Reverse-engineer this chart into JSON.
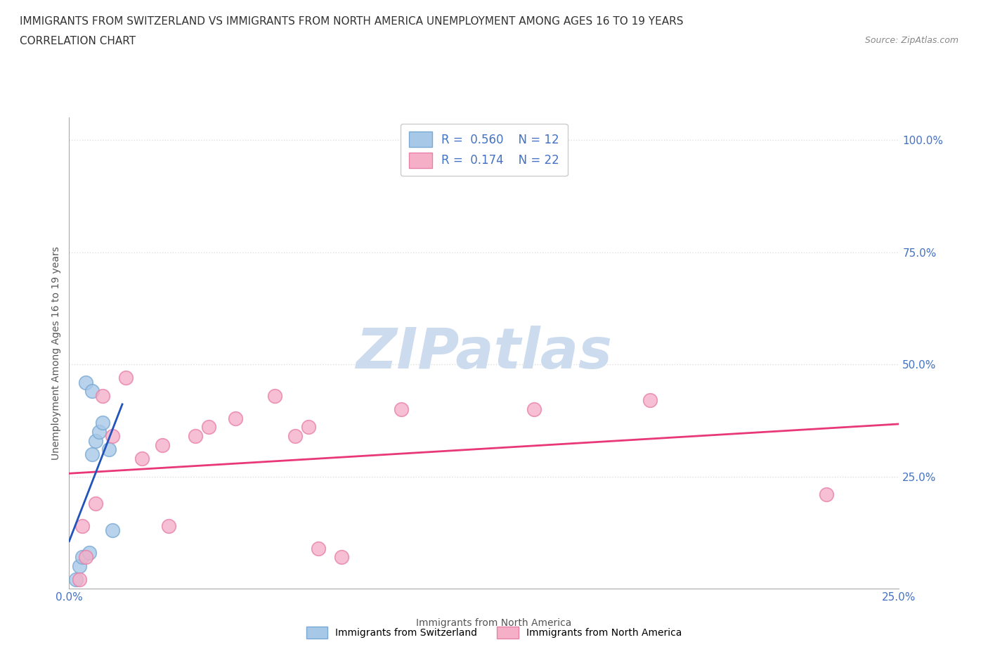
{
  "title_line1": "IMMIGRANTS FROM SWITZERLAND VS IMMIGRANTS FROM NORTH AMERICA UNEMPLOYMENT AMONG AGES 16 TO 19 YEARS",
  "title_line2": "CORRELATION CHART",
  "source_text": "Source: ZipAtlas.com",
  "xlabel": "Immigrants from North America",
  "ylabel": "Unemployment Among Ages 16 to 19 years",
  "xlim": [
    0.0,
    0.25
  ],
  "ylim": [
    0.0,
    1.05
  ],
  "xticks": [
    0.0,
    0.05,
    0.1,
    0.15,
    0.2,
    0.25
  ],
  "yticks": [
    0.0,
    0.25,
    0.5,
    0.75,
    1.0
  ],
  "switzerland_color": "#a8c8e8",
  "north_america_color": "#f5b0c8",
  "switzerland_edge": "#7aaad4",
  "north_america_edge": "#e880a8",
  "trend_switzerland_color": "#2255bb",
  "trend_north_america_color": "#e83878",
  "diagonal_color": "#bbbbcc",
  "watermark_color": "#ccdcee",
  "legend_sw_color": "#a8c8e8",
  "legend_na_color": "#f5b0c8",
  "R_switzerland": 0.56,
  "N_switzerland": 12,
  "R_north_america": 0.174,
  "N_north_america": 22,
  "switzerland_x": [
    0.002,
    0.003,
    0.004,
    0.005,
    0.006,
    0.007,
    0.008,
    0.009,
    0.01,
    0.012,
    0.013,
    0.007
  ],
  "switzerland_y": [
    0.02,
    0.05,
    0.07,
    0.46,
    0.08,
    0.3,
    0.33,
    0.35,
    0.37,
    0.31,
    0.13,
    0.44
  ],
  "north_america_x": [
    0.003,
    0.004,
    0.005,
    0.008,
    0.01,
    0.013,
    0.017,
    0.022,
    0.028,
    0.03,
    0.038,
    0.042,
    0.05,
    0.062,
    0.068,
    0.072,
    0.075,
    0.082,
    0.1,
    0.14,
    0.175,
    0.228
  ],
  "north_america_y": [
    0.02,
    0.14,
    0.07,
    0.19,
    0.43,
    0.34,
    0.47,
    0.29,
    0.32,
    0.14,
    0.34,
    0.36,
    0.38,
    0.43,
    0.34,
    0.36,
    0.09,
    0.07,
    0.4,
    0.4,
    0.42,
    0.21
  ],
  "trend_sw_x0": 0.0,
  "trend_sw_x1": 0.25,
  "trend_na_x0": 0.0,
  "trend_na_x1": 0.25,
  "background_color": "#ffffff",
  "grid_color": "#e0e0e0",
  "tick_color": "#4472c4",
  "label_color": "#555555",
  "title_fontsize": 11,
  "axis_label_fontsize": 10,
  "tick_fontsize": 11,
  "legend_fontsize": 12
}
